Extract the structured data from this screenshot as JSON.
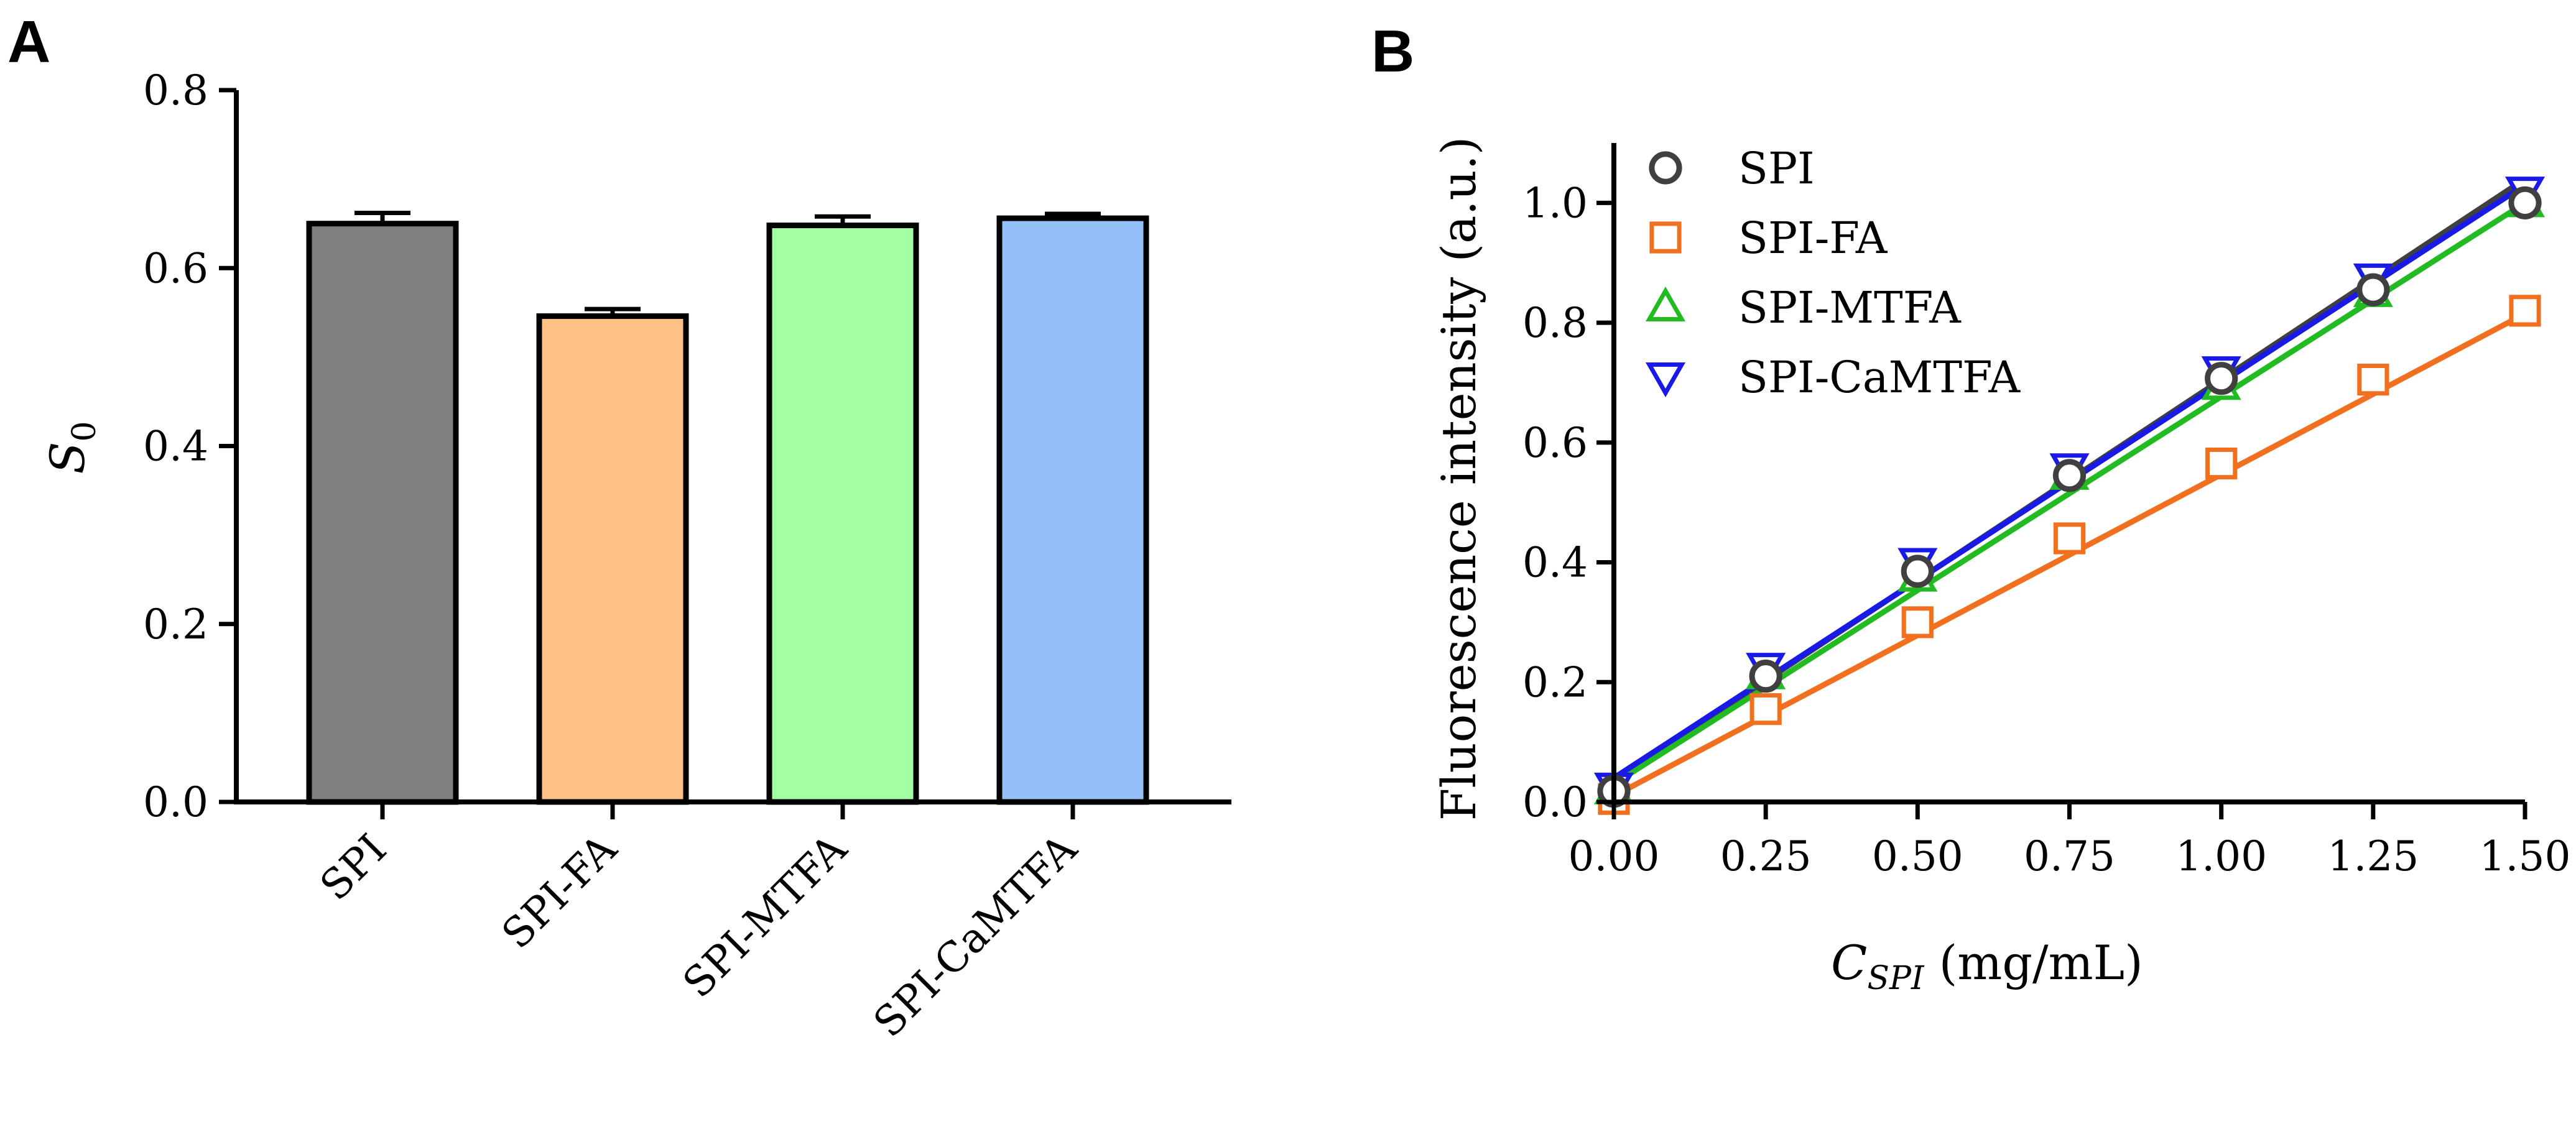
{
  "panels": {
    "a_letter": "A",
    "b_letter": "B"
  },
  "chart_data": [
    {
      "panel": "A",
      "type": "bar",
      "ylabel_main": "S",
      "ylabel_sub": "0",
      "xlabel": "",
      "ylim": [
        0,
        0.8
      ],
      "yticks": [
        "0.0",
        "0.2",
        "0.4",
        "0.6",
        "0.8"
      ],
      "categories": [
        "SPI",
        "SPI-FA",
        "SPI-MTFA",
        "SPI-CaMTFA"
      ],
      "values": [
        0.65,
        0.546,
        0.648,
        0.656
      ],
      "errors": [
        0.012,
        0.008,
        0.01,
        0.005
      ],
      "colors": [
        "#808080",
        "#FFC285",
        "#A3FFA3",
        "#93C1F7"
      ]
    },
    {
      "panel": "B",
      "type": "line",
      "xlabel_main": "C",
      "xlabel_sub": "SPI",
      "xlabel_unit": " (mg/mL)",
      "ylabel": "Fluorescence intensity (a.u.)",
      "xlim": [
        0,
        1.5
      ],
      "ylim": [
        0,
        1.1
      ],
      "xticks": [
        "0.00",
        "0.25",
        "0.50",
        "0.75",
        "1.00",
        "1.25",
        "1.50"
      ],
      "yticks": [
        "0.0",
        "0.2",
        "0.4",
        "0.6",
        "0.8",
        "1.0"
      ],
      "x": [
        0,
        0.25,
        0.5,
        0.75,
        1.0,
        1.25,
        1.5
      ],
      "series": [
        {
          "name": "SPI",
          "marker": "circle",
          "color": "#404040",
          "points": [
            0.018,
            0.21,
            0.385,
            0.545,
            0.707,
            0.855,
            1.0
          ],
          "fit": [
            0.035,
            1.04
          ]
        },
        {
          "name": "SPI-FA",
          "marker": "square",
          "color": "#F07020",
          "points": [
            0.005,
            0.155,
            0.3,
            0.44,
            0.565,
            0.705,
            0.82
          ],
          "fit": [
            0.01,
            0.815
          ]
        },
        {
          "name": "SPI-MTFA",
          "marker": "triangle-up",
          "color": "#22BB22",
          "points": [
            0.02,
            0.212,
            0.375,
            0.545,
            0.695,
            0.85,
            1.0
          ],
          "fit": [
            0.03,
            1.0
          ]
        },
        {
          "name": "SPI-CaMTFA",
          "marker": "triangle-down",
          "color": "#1A1AE6",
          "points": [
            0.025,
            0.225,
            0.4,
            0.558,
            0.72,
            0.875,
            1.02
          ],
          "fit": [
            0.04,
            1.03
          ]
        }
      ]
    }
  ]
}
